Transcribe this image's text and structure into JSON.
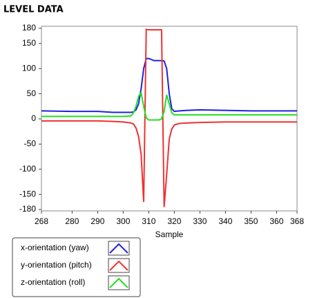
{
  "chart_data": {
    "type": "line",
    "title": "LEVEL DATA",
    "x_label": "Sample",
    "x": [
      268,
      280,
      290,
      296,
      300,
      303,
      304,
      305,
      306,
      307,
      308,
      309,
      310,
      311,
      312,
      313,
      314,
      315,
      316,
      317,
      318,
      319,
      320,
      322,
      325,
      330,
      340,
      350,
      360,
      368
    ],
    "series": [
      {
        "name": "x-orientation (yaw)",
        "color": "#2020e0",
        "values": [
          16,
          15,
          15,
          13,
          13,
          13,
          14,
          18,
          30,
          60,
          100,
          120,
          120,
          118,
          116,
          116,
          116,
          116,
          115,
          100,
          50,
          20,
          15,
          16,
          17,
          18,
          17,
          16,
          16,
          16
        ]
      },
      {
        "name": "y-orientation (pitch)",
        "color": "#f03030",
        "values": [
          -4,
          -4,
          -4,
          -5,
          -6,
          -8,
          -10,
          -18,
          -35,
          -70,
          -165,
          178,
          177,
          177,
          177,
          177,
          177,
          177,
          -175,
          -110,
          -40,
          -20,
          -12,
          -9,
          -8,
          -7,
          -6,
          -6,
          -6,
          -6
        ]
      },
      {
        "name": "z-orientation (roll)",
        "color": "#20e020",
        "values": [
          5,
          5,
          5,
          5,
          5,
          6,
          12,
          25,
          45,
          52,
          25,
          2,
          -2,
          -2,
          -2,
          -2,
          -2,
          0,
          15,
          48,
          30,
          12,
          8,
          8,
          8,
          8,
          8,
          8,
          8,
          8
        ]
      }
    ],
    "xlim": [
      268,
      368
    ],
    "xticks": [
      268,
      280,
      290,
      300,
      310,
      320,
      330,
      340,
      350,
      360,
      368
    ],
    "ylim": [
      -180,
      180
    ],
    "yticks": [
      180,
      150,
      100,
      50,
      0,
      -50,
      -100,
      -150,
      -180
    ],
    "grid": false
  }
}
